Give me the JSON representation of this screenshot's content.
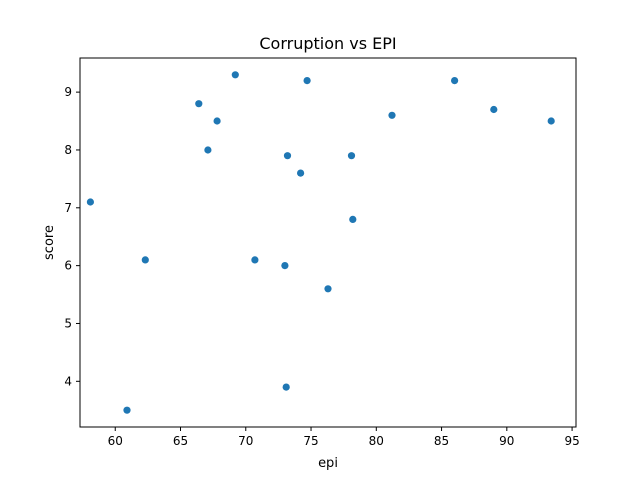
{
  "chart_data": {
    "type": "scatter",
    "title": "Corruption vs EPI",
    "xlabel": "epi",
    "ylabel": "score",
    "xlim": [
      57.3,
      95.3
    ],
    "ylim": [
      3.21,
      9.59
    ],
    "xticks": [
      60,
      65,
      70,
      75,
      80,
      85,
      90,
      95
    ],
    "yticks": [
      4,
      5,
      6,
      7,
      8,
      9
    ],
    "grid": false,
    "marker_color": "#1f77b4",
    "points": [
      {
        "x": 58.1,
        "y": 7.1
      },
      {
        "x": 60.9,
        "y": 3.5
      },
      {
        "x": 62.3,
        "y": 6.1
      },
      {
        "x": 66.4,
        "y": 8.8
      },
      {
        "x": 67.1,
        "y": 8.0
      },
      {
        "x": 67.8,
        "y": 8.5
      },
      {
        "x": 69.2,
        "y": 9.3
      },
      {
        "x": 70.7,
        "y": 6.1
      },
      {
        "x": 73.0,
        "y": 6.0
      },
      {
        "x": 73.1,
        "y": 3.9
      },
      {
        "x": 73.2,
        "y": 7.9
      },
      {
        "x": 74.2,
        "y": 7.6
      },
      {
        "x": 74.7,
        "y": 9.2
      },
      {
        "x": 76.3,
        "y": 5.6
      },
      {
        "x": 78.1,
        "y": 7.9
      },
      {
        "x": 78.2,
        "y": 6.8
      },
      {
        "x": 81.2,
        "y": 8.6
      },
      {
        "x": 86.0,
        "y": 9.2
      },
      {
        "x": 89.0,
        "y": 8.7
      },
      {
        "x": 93.4,
        "y": 8.5
      }
    ]
  }
}
